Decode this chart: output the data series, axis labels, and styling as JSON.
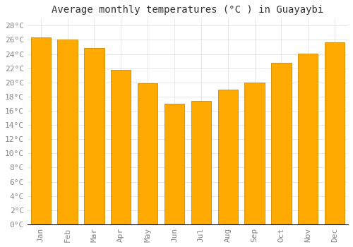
{
  "title": "Average monthly temperatures (°C ) in Guayaybi",
  "months": [
    "Jan",
    "Feb",
    "Mar",
    "Apr",
    "May",
    "Jun",
    "Jul",
    "Aug",
    "Sep",
    "Oct",
    "Nov",
    "Dec"
  ],
  "values": [
    26.3,
    26.0,
    24.9,
    21.8,
    19.9,
    17.0,
    17.4,
    19.0,
    20.0,
    22.8,
    24.1,
    25.6
  ],
  "bar_color": "#FFAA00",
  "bar_edge_color": "#CC8800",
  "background_color": "#FFFFFF",
  "grid_color": "#DDDDDD",
  "text_color": "#888888",
  "ylim": [
    0,
    29
  ],
  "yticks": [
    0,
    2,
    4,
    6,
    8,
    10,
    12,
    14,
    16,
    18,
    20,
    22,
    24,
    26,
    28
  ],
  "title_fontsize": 10,
  "tick_fontsize": 8,
  "font_family": "monospace"
}
